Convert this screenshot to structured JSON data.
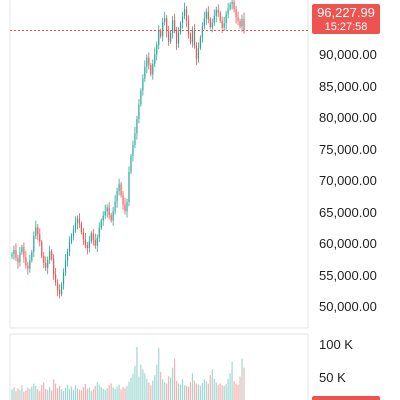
{
  "chart_data": {
    "type": "candlestick",
    "colors": {
      "up": "#26a69a",
      "down": "#ef5350",
      "price_line": "#ef5350",
      "volume_up": "#9fd8d2",
      "volume_down": "#f6b0b0",
      "grid": "#e6e6e6"
    },
    "price_axis": {
      "range": [
        47800,
        101200
      ],
      "tick_labels": [
        "90,000.00",
        "85,000.00",
        "80,000.00",
        "75,000.00",
        "70,000.00",
        "65,000.00",
        "60,000.00",
        "55,000.00",
        "50,000.00"
      ],
      "tick_values": [
        90000,
        85000,
        80000,
        75000,
        70000,
        65000,
        60000,
        55000,
        50000
      ]
    },
    "current_price": {
      "value": 96227.99,
      "label": "96,227.99",
      "countdown": "15:27:58"
    },
    "volume_axis": {
      "range": [
        0,
        112000
      ],
      "tick_labels": [
        "100 K",
        "50 K"
      ],
      "tick_values": [
        100000,
        50000
      ]
    },
    "candles_close": [
      59800,
      60500,
      59200,
      58500,
      60100,
      61000,
      59300,
      58000,
      57500,
      58800,
      60200,
      62800,
      64200,
      63100,
      61800,
      59500,
      58400,
      57600,
      58900,
      60300,
      59100,
      56500,
      55200,
      54000,
      53300,
      54900,
      56800,
      58800,
      60200,
      61800,
      62900,
      63800,
      64900,
      65600,
      64800,
      63400,
      62200,
      61300,
      60800,
      61900,
      63200,
      62100,
      61200,
      62500,
      64100,
      65300,
      66100,
      66800,
      67400,
      66200,
      65300,
      66800,
      68400,
      70100,
      71200,
      69400,
      67900,
      66800,
      68300,
      73200,
      75800,
      77600,
      79500,
      81800,
      84200,
      86500,
      88400,
      90300,
      91800,
      90600,
      89100,
      90800,
      92400,
      93900,
      96200,
      95300,
      97600,
      98200,
      96100,
      94400,
      95800,
      97900,
      96300,
      94100,
      95900,
      97400,
      98600,
      99700,
      97800,
      95600,
      94300,
      96200,
      93800,
      91600,
      93400,
      95100,
      96900,
      98200,
      99300,
      98100,
      96800,
      97500,
      98600,
      99600,
      99100,
      97800,
      96700,
      97400,
      98900,
      99800,
      100500,
      100900,
      99700,
      98400,
      97800,
      96900,
      98100,
      96227.99
    ],
    "volumes": [
      18000,
      22000,
      15000,
      20000,
      17000,
      25000,
      14000,
      16000,
      21000,
      19000,
      23000,
      28000,
      24000,
      18000,
      15000,
      26000,
      30000,
      19000,
      17000,
      22000,
      16000,
      35000,
      28000,
      20000,
      24000,
      18000,
      15000,
      21000,
      26000,
      19000,
      23000,
      17000,
      25000,
      20000,
      18000,
      16000,
      22000,
      27000,
      19000,
      21000,
      15000,
      18000,
      24000,
      30000,
      26000,
      22000,
      19000,
      17000,
      20000,
      25000,
      28000,
      21000,
      19000,
      23000,
      26000,
      18000,
      22000,
      20000,
      24000,
      31000,
      38000,
      45000,
      58000,
      90000,
      40000,
      60000,
      52000,
      45000,
      36000,
      30000,
      25000,
      33000,
      42000,
      60000,
      88000,
      48000,
      35000,
      30000,
      28000,
      40000,
      38000,
      55000,
      70000,
      32000,
      28000,
      26000,
      35000,
      25000,
      24000,
      22000,
      30000,
      45000,
      33000,
      28000,
      26000,
      24000,
      29000,
      35000,
      32000,
      28000,
      42000,
      52000,
      36000,
      30000,
      26000,
      28000,
      25000,
      24000,
      27000,
      36000,
      45000,
      65000,
      32000,
      28000,
      26000,
      40000,
      70000,
      55000
    ]
  }
}
